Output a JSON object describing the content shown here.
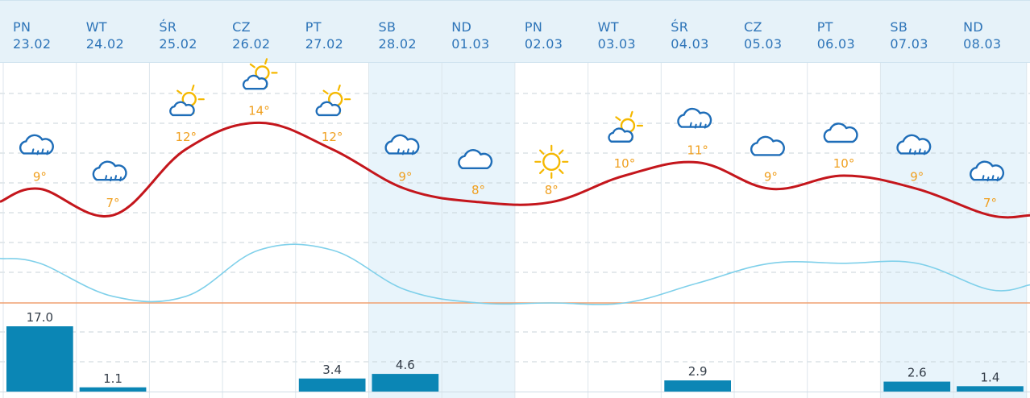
{
  "days": [
    {
      "dow": "PN",
      "date": "23.02",
      "weekend": false
    },
    {
      "dow": "WT",
      "date": "24.02",
      "weekend": false
    },
    {
      "dow": "ŚR",
      "date": "25.02",
      "weekend": false
    },
    {
      "dow": "CZ",
      "date": "26.02",
      "weekend": false
    },
    {
      "dow": "PT",
      "date": "27.02",
      "weekend": false
    },
    {
      "dow": "SB",
      "date": "28.02",
      "weekend": true
    },
    {
      "dow": "ND",
      "date": "01.03",
      "weekend": true
    },
    {
      "dow": "PN",
      "date": "02.03",
      "weekend": false
    },
    {
      "dow": "WT",
      "date": "03.03",
      "weekend": false
    },
    {
      "dow": "ŚR",
      "date": "04.03",
      "weekend": false
    },
    {
      "dow": "CZ",
      "date": "05.03",
      "weekend": false
    },
    {
      "dow": "PT",
      "date": "06.03",
      "weekend": false
    },
    {
      "dow": "SB",
      "date": "07.03",
      "weekend": true
    },
    {
      "dow": "ND",
      "date": "08.03",
      "weekend": true
    }
  ],
  "chart_data": {
    "type": "line",
    "categories": [
      "23.02",
      "24.02",
      "25.02",
      "26.02",
      "27.02",
      "28.02",
      "01.03",
      "02.03",
      "03.03",
      "04.03",
      "05.03",
      "06.03",
      "07.03",
      "08.03"
    ],
    "series": [
      {
        "role": "max-temperature",
        "color": "#c4161c",
        "values": [
          9,
          7,
          12,
          14,
          12,
          9,
          8,
          8,
          10,
          11,
          9,
          10,
          9,
          7
        ],
        "labels": [
          "9°",
          "7°",
          "12°",
          "14°",
          "12°",
          "9°",
          "8°",
          "8°",
          "10°",
          "11°",
          "9°",
          "10°",
          "9°",
          "7°"
        ],
        "label_color": "#f0a020"
      },
      {
        "role": "min-temperature",
        "color": "#7fd0ea",
        "values": [
          3,
          0.5,
          0.5,
          4,
          4,
          1,
          0,
          0,
          0,
          1.5,
          3,
          3,
          3,
          1
        ]
      },
      {
        "role": "precipitation",
        "type": "bar",
        "color": "#0b86b5",
        "values": [
          17.0,
          1.1,
          0,
          0,
          3.4,
          4.6,
          0,
          0,
          0,
          2.9,
          0,
          0,
          2.6,
          1.4
        ],
        "labels": [
          "17.0",
          "1.1",
          "",
          "",
          "3.4",
          "4.6",
          "",
          "",
          "",
          "2.9",
          "",
          "",
          "2.6",
          "1.4"
        ],
        "label_color": "#333d48"
      }
    ],
    "icons": [
      "rain-cloud-icon",
      "rain-cloud-icon",
      "partly-sunny-icon",
      "partly-sunny-icon",
      "partly-sunny-icon",
      "rain-cloud-icon",
      "cloud-icon",
      "sun-icon",
      "partly-sunny-icon",
      "rain-cloud-icon",
      "cloud-icon",
      "cloud-icon",
      "rain-cloud-icon",
      "rain-cloud-icon"
    ],
    "temperature_axis_range": [
      -1,
      17
    ],
    "precipitation_axis_range": [
      0,
      20
    ],
    "freezing_line": 0,
    "grid": true,
    "colors": {
      "header": "#e6f2f9",
      "weekend": "#e8f4fb",
      "text": "#2d74b8",
      "icon": "#1e6db8",
      "sun": "#f5b800",
      "zero_line": "#f0a070"
    }
  }
}
